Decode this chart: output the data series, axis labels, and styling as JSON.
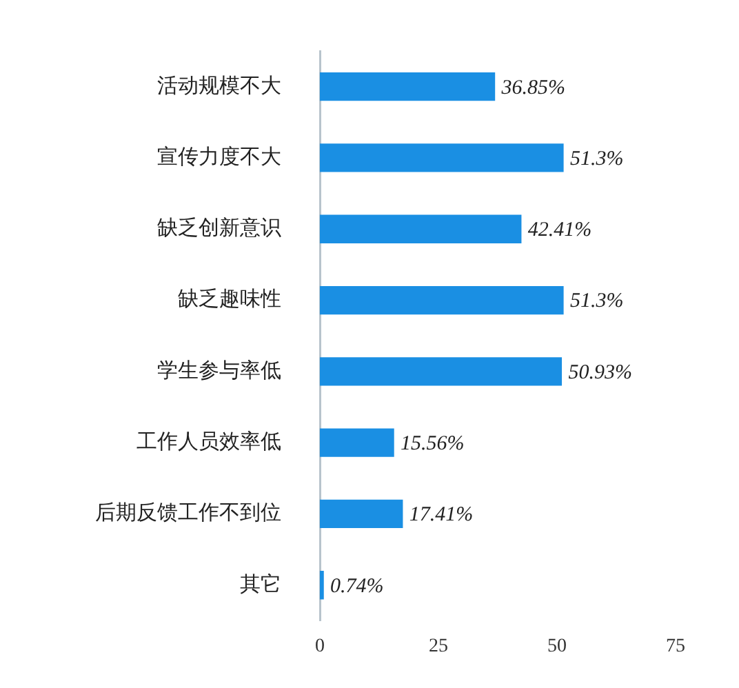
{
  "chart_data": {
    "type": "bar",
    "orientation": "horizontal",
    "categories": [
      "活动规模不大",
      "宣传力度不大",
      "缺乏创新意识",
      "缺乏趣味性",
      "学生参与率低",
      "工作人员效率低",
      "后期反馈工作不到位",
      "其它"
    ],
    "values": [
      36.85,
      51.3,
      42.41,
      51.3,
      50.93,
      15.56,
      17.41,
      0.74
    ],
    "value_labels": [
      "36.85%",
      "51.3%",
      "42.41%",
      "51.3%",
      "50.93%",
      "15.56%",
      "17.41%",
      "0.74%"
    ],
    "color": "#1a8fe3",
    "xlim": [
      0,
      75
    ],
    "xticks": [
      0,
      25,
      50,
      75
    ],
    "grid": false,
    "legend": false
  }
}
